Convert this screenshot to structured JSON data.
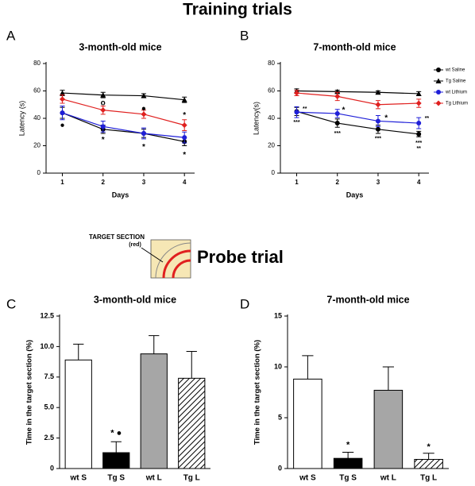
{
  "headings": {
    "training": "Training trials",
    "probe": "Probe trial",
    "target": "TARGET SECTION",
    "target_note": "(red)"
  },
  "chart_data": [
    {
      "type": "line",
      "panel": "A",
      "title": "3-month-old mice",
      "xlabel": "Days",
      "ylabel": "Latency (s)",
      "x": [
        1,
        2,
        3,
        4
      ],
      "xlim": [
        0.6,
        4.25
      ],
      "xticks": [
        1,
        2,
        3,
        4
      ],
      "ylim": [
        0,
        80
      ],
      "yticks": [
        0,
        20,
        40,
        60,
        80
      ],
      "legend": false,
      "series": [
        {
          "color": "#000000",
          "marker": "circle",
          "values": [
            44,
            32,
            29,
            23
          ],
          "errors": [
            4,
            3,
            3,
            3
          ]
        },
        {
          "color": "#000000",
          "marker": "triangle",
          "values": [
            58.5,
            57,
            56.5,
            53.5
          ],
          "errors": [
            2,
            2,
            1.5,
            2
          ]
        },
        {
          "color": "#1f1fd8",
          "marker": "circle",
          "values": [
            44,
            34,
            29,
            26
          ],
          "errors": [
            5,
            4,
            4,
            4
          ]
        },
        {
          "color": "#e0201f",
          "marker": "diamond",
          "values": [
            54,
            46,
            43,
            35
          ],
          "errors": [
            3,
            3,
            3,
            4
          ]
        }
      ],
      "annotations": [
        {
          "text": "●",
          "x": 1,
          "y": 35
        },
        {
          "text": "*",
          "x": 2,
          "y": 24
        },
        {
          "text": "o",
          "x": 2,
          "y": 51
        },
        {
          "text": "●",
          "x": 3,
          "y": 47
        },
        {
          "text": "*",
          "x": 3,
          "y": 19
        },
        {
          "text": "*",
          "x": 4,
          "y": 42
        },
        {
          "text": "*",
          "x": 4,
          "y": 13
        }
      ]
    },
    {
      "type": "line",
      "panel": "B",
      "title": "7-month-old mice",
      "xlabel": "Days",
      "ylabel": "Latency(s)",
      "x": [
        1,
        2,
        3,
        4
      ],
      "xlim": [
        0.6,
        4.25
      ],
      "xticks": [
        1,
        2,
        3,
        4
      ],
      "ylim": [
        0,
        80
      ],
      "yticks": [
        0,
        20,
        40,
        60,
        80
      ],
      "legend": true,
      "series": [
        {
          "name": "wt Saline",
          "color": "#000000",
          "marker": "circle",
          "values": [
            45,
            36.5,
            32,
            28.5
          ],
          "errors": [
            3,
            3,
            3,
            2
          ]
        },
        {
          "name": "Tg Saline",
          "color": "#000000",
          "marker": "triangle",
          "values": [
            60,
            59.5,
            59,
            58
          ],
          "errors": [
            1.5,
            1,
            1,
            1.5
          ]
        },
        {
          "name": "wt Lithium",
          "color": "#1f1fd8",
          "marker": "circle",
          "values": [
            44.5,
            43.5,
            38,
            36.5
          ],
          "errors": [
            4,
            3,
            4,
            4
          ]
        },
        {
          "name": "Tg Lithium",
          "color": "#e0201f",
          "marker": "diamond",
          "values": [
            58.5,
            56,
            50,
            51
          ],
          "errors": [
            2,
            3,
            3,
            3
          ]
        }
      ],
      "annotations": [
        {
          "text": "***",
          "x": 1,
          "y": 37
        },
        {
          "text": "**",
          "x": 1.2,
          "y": 47
        },
        {
          "text": "***",
          "x": 2,
          "y": 29
        },
        {
          "text": "*",
          "x": 2.15,
          "y": 46
        },
        {
          "text": "***",
          "x": 3,
          "y": 25
        },
        {
          "text": "*",
          "x": 3.2,
          "y": 40
        },
        {
          "text": "**",
          "x": 4.2,
          "y": 40
        },
        {
          "text": "***",
          "x": 4,
          "y": 22
        },
        {
          "text": "**",
          "x": 4,
          "y": 18
        }
      ]
    },
    {
      "type": "bar",
      "panel": "C",
      "title": "3-month-old mice",
      "ylabel": "Time in the target section (%)",
      "categories": [
        "wt S",
        "Tg S",
        "wt L",
        "Tg L"
      ],
      "values": [
        8.9,
        1.3,
        9.4,
        7.4
      ],
      "errors": [
        1.3,
        0.9,
        1.5,
        2.2
      ],
      "colors": [
        "#ffffff",
        "#000000",
        "#a6a6a6",
        "hatch"
      ],
      "ylim": [
        0,
        12.5
      ],
      "yticks": [
        0,
        2.5,
        {
          "value": 5,
          "label": "5.0"
        },
        7.5,
        {
          "value": 10,
          "label": "10.0"
        },
        12.5
      ],
      "annotations": [
        {
          "text": "* ●",
          "x": 1,
          "y": 2.9
        }
      ]
    },
    {
      "type": "bar",
      "panel": "D",
      "title": "7-month-old mice",
      "ylabel": "Time in the target section (%)",
      "categories": [
        "wt S",
        "Tg S",
        "wt L",
        "Tg L"
      ],
      "values": [
        8.8,
        1.0,
        7.7,
        0.9
      ],
      "errors": [
        2.3,
        0.6,
        2.3,
        0.6
      ],
      "colors": [
        "#ffffff",
        "#000000",
        "#a6a6a6",
        "hatch"
      ],
      "ylim": [
        0,
        15
      ],
      "yticks": [
        0,
        5,
        10,
        15
      ],
      "annotations": [
        {
          "text": "*",
          "x": 1,
          "y": 2.3
        },
        {
          "text": "*",
          "x": 3,
          "y": 2.1
        }
      ]
    }
  ]
}
